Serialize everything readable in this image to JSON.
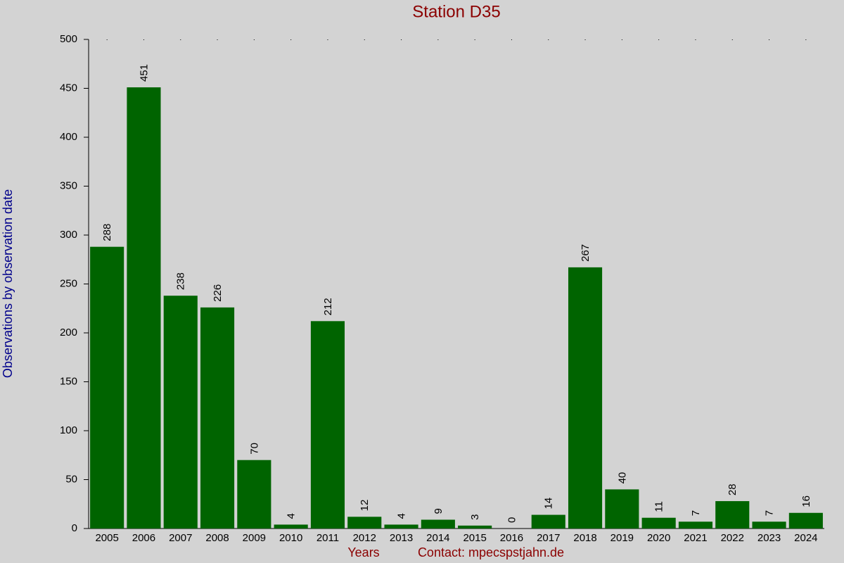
{
  "chart_data": {
    "type": "bar",
    "title": "Station D35",
    "xlabel": "Years",
    "ylabel": "Observations by observation date",
    "annotation": "Contact: mpecspstjahn.de",
    "categories": [
      "2005",
      "2006",
      "2007",
      "2008",
      "2009",
      "2010",
      "2011",
      "2012",
      "2013",
      "2014",
      "2015",
      "2016",
      "2017",
      "2018",
      "2019",
      "2020",
      "2021",
      "2022",
      "2023",
      "2024"
    ],
    "values": [
      288,
      451,
      238,
      226,
      70,
      4,
      212,
      12,
      4,
      9,
      3,
      0,
      14,
      267,
      40,
      11,
      7,
      28,
      7,
      16
    ],
    "color": "#006400",
    "ylim": [
      0,
      500
    ],
    "yticks": [
      0,
      50,
      100,
      150,
      200,
      250,
      300,
      350,
      400,
      450,
      500
    ],
    "grid": false
  }
}
